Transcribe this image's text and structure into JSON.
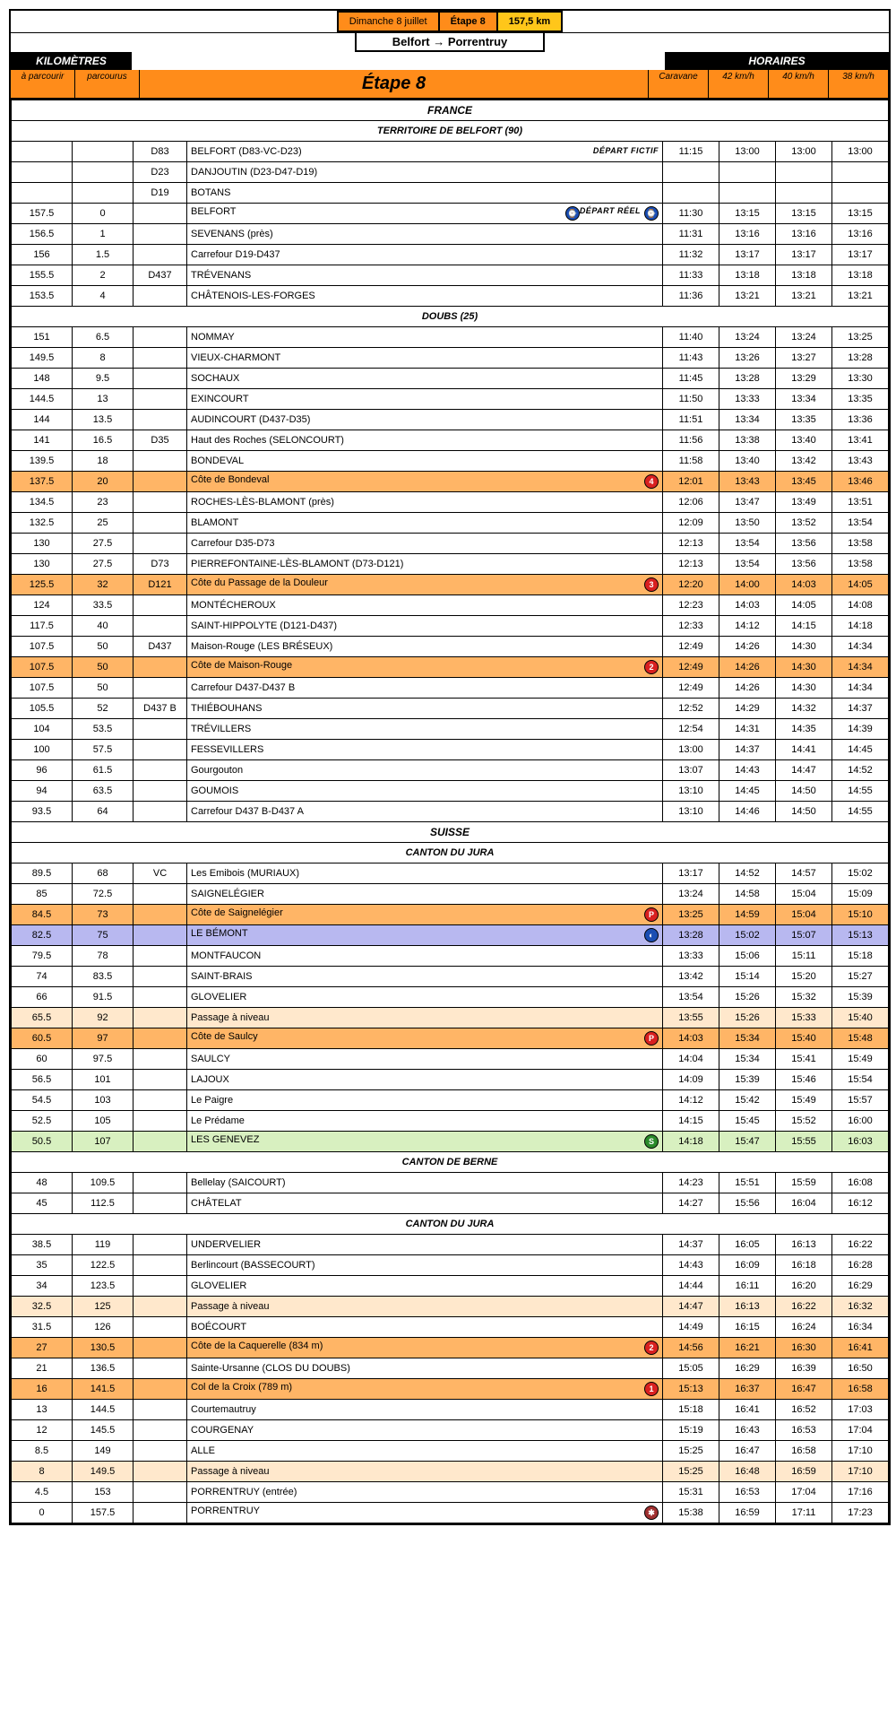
{
  "header": {
    "date": "Dimanche 8 juillet",
    "stage_label": "Étape 8",
    "distance": "157,5 km",
    "route": "Belfort → Porrentruy",
    "km_header": "KILOMÈTRES",
    "hor_header": "HORAIRES",
    "col_km1": "à parcourir",
    "col_km2": "parcourus",
    "col_stage": "Étape 8",
    "col_caravane": "Caravane",
    "col_s42": "42 km/h",
    "col_s40": "40 km/h",
    "col_s38": "38 km/h"
  },
  "labels": {
    "depart_fictif": "DÉPART FICTIF",
    "depart_reel": "DÉPART RÉEL"
  },
  "sections": [
    {
      "type": "country",
      "label": "FRANCE"
    },
    {
      "type": "region",
      "label": "TERRITOIRE DE BELFORT (90)"
    },
    {
      "km1": "",
      "km2": "",
      "road": "D83",
      "loc": "BELFORT (D83-VC-D23)",
      "tag": "depart_fictif",
      "car": "11:15",
      "s42": "13:00",
      "s40": "13:00",
      "s38": "13:00"
    },
    {
      "km1": "",
      "km2": "",
      "road": "D23",
      "loc": "DANJOUTIN (D23-D47-D19)",
      "car": "",
      "s42": "",
      "s40": "",
      "s38": ""
    },
    {
      "km1": "",
      "km2": "",
      "road": "D19",
      "loc": "BOTANS",
      "car": "",
      "s42": "",
      "s40": "",
      "s38": ""
    },
    {
      "km1": "157.5",
      "km2": "0",
      "road": "",
      "loc": "BELFORT",
      "tag": "depart_reel",
      "badge": {
        "cls": "b-blue",
        "txt": "⌚"
      },
      "car": "11:30",
      "s42": "13:15",
      "s40": "13:15",
      "s38": "13:15"
    },
    {
      "km1": "156.5",
      "km2": "1",
      "road": "",
      "loc": "SEVENANS (près)",
      "car": "11:31",
      "s42": "13:16",
      "s40": "13:16",
      "s38": "13:16"
    },
    {
      "km1": "156",
      "km2": "1.5",
      "road": "",
      "loc": "Carrefour D19-D437",
      "car": "11:32",
      "s42": "13:17",
      "s40": "13:17",
      "s38": "13:17"
    },
    {
      "km1": "155.5",
      "km2": "2",
      "road": "D437",
      "loc": "TRÉVENANS",
      "car": "11:33",
      "s42": "13:18",
      "s40": "13:18",
      "s38": "13:18"
    },
    {
      "km1": "153.5",
      "km2": "4",
      "road": "",
      "loc": "CHÂTENOIS-LES-FORGES",
      "car": "11:36",
      "s42": "13:21",
      "s40": "13:21",
      "s38": "13:21"
    },
    {
      "type": "region",
      "label": "DOUBS (25)"
    },
    {
      "km1": "151",
      "km2": "6.5",
      "road": "",
      "loc": "NOMMAY",
      "car": "11:40",
      "s42": "13:24",
      "s40": "13:24",
      "s38": "13:25"
    },
    {
      "km1": "149.5",
      "km2": "8",
      "road": "",
      "loc": "VIEUX-CHARMONT",
      "car": "11:43",
      "s42": "13:26",
      "s40": "13:27",
      "s38": "13:28"
    },
    {
      "km1": "148",
      "km2": "9.5",
      "road": "",
      "loc": "SOCHAUX",
      "car": "11:45",
      "s42": "13:28",
      "s40": "13:29",
      "s38": "13:30"
    },
    {
      "km1": "144.5",
      "km2": "13",
      "road": "",
      "loc": "EXINCOURT",
      "car": "11:50",
      "s42": "13:33",
      "s40": "13:34",
      "s38": "13:35"
    },
    {
      "km1": "144",
      "km2": "13.5",
      "road": "",
      "loc": "AUDINCOURT (D437-D35)",
      "car": "11:51",
      "s42": "13:34",
      "s40": "13:35",
      "s38": "13:36"
    },
    {
      "km1": "141",
      "km2": "16.5",
      "road": "D35",
      "loc": "Haut des Roches (SELONCOURT)",
      "car": "11:56",
      "s42": "13:38",
      "s40": "13:40",
      "s38": "13:41"
    },
    {
      "km1": "139.5",
      "km2": "18",
      "road": "",
      "loc": "BONDEVAL",
      "car": "11:58",
      "s42": "13:40",
      "s40": "13:42",
      "s38": "13:43"
    },
    {
      "hl": "orange",
      "km1": "137.5",
      "km2": "20",
      "road": "",
      "loc": "Côte de Bondeval",
      "badge": {
        "cls": "b-red",
        "txt": "4"
      },
      "car": "12:01",
      "s42": "13:43",
      "s40": "13:45",
      "s38": "13:46"
    },
    {
      "km1": "134.5",
      "km2": "23",
      "road": "",
      "loc": "ROCHES-LÈS-BLAMONT (près)",
      "car": "12:06",
      "s42": "13:47",
      "s40": "13:49",
      "s38": "13:51"
    },
    {
      "km1": "132.5",
      "km2": "25",
      "road": "",
      "loc": "BLAMONT",
      "car": "12:09",
      "s42": "13:50",
      "s40": "13:52",
      "s38": "13:54"
    },
    {
      "km1": "130",
      "km2": "27.5",
      "road": "",
      "loc": "Carrefour D35-D73",
      "car": "12:13",
      "s42": "13:54",
      "s40": "13:56",
      "s38": "13:58"
    },
    {
      "km1": "130",
      "km2": "27.5",
      "road": "D73",
      "loc": "PIERREFONTAINE-LÈS-BLAMONT (D73-D121)",
      "car": "12:13",
      "s42": "13:54",
      "s40": "13:56",
      "s38": "13:58"
    },
    {
      "hl": "orange",
      "km1": "125.5",
      "km2": "32",
      "road": "D121",
      "loc": "Côte du Passage de la Douleur",
      "badge": {
        "cls": "b-red",
        "txt": "3"
      },
      "car": "12:20",
      "s42": "14:00",
      "s40": "14:03",
      "s38": "14:05"
    },
    {
      "km1": "124",
      "km2": "33.5",
      "road": "",
      "loc": "MONTÉCHEROUX",
      "car": "12:23",
      "s42": "14:03",
      "s40": "14:05",
      "s38": "14:08"
    },
    {
      "km1": "117.5",
      "km2": "40",
      "road": "",
      "loc": "SAINT-HIPPOLYTE (D121-D437)",
      "car": "12:33",
      "s42": "14:12",
      "s40": "14:15",
      "s38": "14:18"
    },
    {
      "km1": "107.5",
      "km2": "50",
      "road": "D437",
      "loc": "Maison-Rouge (LES BRÉSEUX)",
      "car": "12:49",
      "s42": "14:26",
      "s40": "14:30",
      "s38": "14:34"
    },
    {
      "hl": "orange",
      "km1": "107.5",
      "km2": "50",
      "road": "",
      "loc": "Côte de Maison-Rouge",
      "badge": {
        "cls": "b-red",
        "txt": "2"
      },
      "car": "12:49",
      "s42": "14:26",
      "s40": "14:30",
      "s38": "14:34"
    },
    {
      "km1": "107.5",
      "km2": "50",
      "road": "",
      "loc": "Carrefour D437-D437 B",
      "car": "12:49",
      "s42": "14:26",
      "s40": "14:30",
      "s38": "14:34"
    },
    {
      "km1": "105.5",
      "km2": "52",
      "road": "D437 B",
      "loc": "THIÉBOUHANS",
      "car": "12:52",
      "s42": "14:29",
      "s40": "14:32",
      "s38": "14:37"
    },
    {
      "km1": "104",
      "km2": "53.5",
      "road": "",
      "loc": "TRÉVILLERS",
      "car": "12:54",
      "s42": "14:31",
      "s40": "14:35",
      "s38": "14:39"
    },
    {
      "km1": "100",
      "km2": "57.5",
      "road": "",
      "loc": "FESSEVILLERS",
      "car": "13:00",
      "s42": "14:37",
      "s40": "14:41",
      "s38": "14:45"
    },
    {
      "km1": "96",
      "km2": "61.5",
      "road": "",
      "loc": "Gourgouton",
      "car": "13:07",
      "s42": "14:43",
      "s40": "14:47",
      "s38": "14:52"
    },
    {
      "km1": "94",
      "km2": "63.5",
      "road": "",
      "loc": "GOUMOIS",
      "car": "13:10",
      "s42": "14:45",
      "s40": "14:50",
      "s38": "14:55"
    },
    {
      "km1": "93.5",
      "km2": "64",
      "road": "",
      "loc": "Carrefour D437 B-D437 A",
      "car": "13:10",
      "s42": "14:46",
      "s40": "14:50",
      "s38": "14:55"
    },
    {
      "type": "country",
      "label": "SUISSE"
    },
    {
      "type": "region",
      "label": "CANTON DU JURA"
    },
    {
      "km1": "89.5",
      "km2": "68",
      "road": "VC",
      "loc": "Les Emibois (MURIAUX)",
      "car": "13:17",
      "s42": "14:52",
      "s40": "14:57",
      "s38": "15:02"
    },
    {
      "km1": "85",
      "km2": "72.5",
      "road": "",
      "loc": "SAIGNELÉGIER",
      "car": "13:24",
      "s42": "14:58",
      "s40": "15:04",
      "s38": "15:09"
    },
    {
      "hl": "orange",
      "km1": "84.5",
      "km2": "73",
      "road": "",
      "loc": "Côte de Saignelégier",
      "badge": {
        "cls": "b-red",
        "txt": "P"
      },
      "car": "13:25",
      "s42": "14:59",
      "s40": "15:04",
      "s38": "15:10"
    },
    {
      "hl": "blue",
      "km1": "82.5",
      "km2": "75",
      "road": "",
      "loc": "LE BÉMONT",
      "badge": {
        "cls": "b-blue",
        "txt": "◐"
      },
      "car": "13:28",
      "s42": "15:02",
      "s40": "15:07",
      "s38": "15:13"
    },
    {
      "km1": "79.5",
      "km2": "78",
      "road": "",
      "loc": "MONTFAUCON",
      "car": "13:33",
      "s42": "15:06",
      "s40": "15:11",
      "s38": "15:18"
    },
    {
      "km1": "74",
      "km2": "83.5",
      "road": "",
      "loc": "SAINT-BRAIS",
      "car": "13:42",
      "s42": "15:14",
      "s40": "15:20",
      "s38": "15:27"
    },
    {
      "km1": "66",
      "km2": "91.5",
      "road": "",
      "loc": "GLOVELIER",
      "car": "13:54",
      "s42": "15:26",
      "s40": "15:32",
      "s38": "15:39"
    },
    {
      "hl": "cream",
      "km1": "65.5",
      "km2": "92",
      "road": "",
      "loc": "Passage à niveau",
      "car": "13:55",
      "s42": "15:26",
      "s40": "15:33",
      "s38": "15:40"
    },
    {
      "hl": "orange",
      "km1": "60.5",
      "km2": "97",
      "road": "",
      "loc": "Côte de Saulcy",
      "badge": {
        "cls": "b-red",
        "txt": "P"
      },
      "car": "14:03",
      "s42": "15:34",
      "s40": "15:40",
      "s38": "15:48"
    },
    {
      "km1": "60",
      "km2": "97.5",
      "road": "",
      "loc": "SAULCY",
      "car": "14:04",
      "s42": "15:34",
      "s40": "15:41",
      "s38": "15:49"
    },
    {
      "km1": "56.5",
      "km2": "101",
      "road": "",
      "loc": "LAJOUX",
      "car": "14:09",
      "s42": "15:39",
      "s40": "15:46",
      "s38": "15:54"
    },
    {
      "km1": "54.5",
      "km2": "103",
      "road": "",
      "loc": "Le Paigre",
      "car": "14:12",
      "s42": "15:42",
      "s40": "15:49",
      "s38": "15:57"
    },
    {
      "km1": "52.5",
      "km2": "105",
      "road": "",
      "loc": "Le Prédame",
      "car": "14:15",
      "s42": "15:45",
      "s40": "15:52",
      "s38": "16:00"
    },
    {
      "hl": "green",
      "km1": "50.5",
      "km2": "107",
      "road": "",
      "loc": "LES GENEVEZ",
      "badge": {
        "cls": "b-green",
        "txt": "S"
      },
      "car": "14:18",
      "s42": "15:47",
      "s40": "15:55",
      "s38": "16:03"
    },
    {
      "type": "region",
      "label": "CANTON DE BERNE"
    },
    {
      "km1": "48",
      "km2": "109.5",
      "road": "",
      "loc": "Bellelay (SAICOURT)",
      "car": "14:23",
      "s42": "15:51",
      "s40": "15:59",
      "s38": "16:08"
    },
    {
      "km1": "45",
      "km2": "112.5",
      "road": "",
      "loc": "CHÂTELAT",
      "car": "14:27",
      "s42": "15:56",
      "s40": "16:04",
      "s38": "16:12"
    },
    {
      "type": "region",
      "label": "CANTON DU JURA"
    },
    {
      "km1": "38.5",
      "km2": "119",
      "road": "",
      "loc": "UNDERVELIER",
      "car": "14:37",
      "s42": "16:05",
      "s40": "16:13",
      "s38": "16:22"
    },
    {
      "km1": "35",
      "km2": "122.5",
      "road": "",
      "loc": "Berlincourt (BASSECOURT)",
      "car": "14:43",
      "s42": "16:09",
      "s40": "16:18",
      "s38": "16:28"
    },
    {
      "km1": "34",
      "km2": "123.5",
      "road": "",
      "loc": "GLOVELIER",
      "car": "14:44",
      "s42": "16:11",
      "s40": "16:20",
      "s38": "16:29"
    },
    {
      "hl": "cream",
      "km1": "32.5",
      "km2": "125",
      "road": "",
      "loc": "Passage à niveau",
      "car": "14:47",
      "s42": "16:13",
      "s40": "16:22",
      "s38": "16:32"
    },
    {
      "km1": "31.5",
      "km2": "126",
      "road": "",
      "loc": "BOÉCOURT",
      "car": "14:49",
      "s42": "16:15",
      "s40": "16:24",
      "s38": "16:34"
    },
    {
      "hl": "orange",
      "km1": "27",
      "km2": "130.5",
      "road": "",
      "loc": "Côte de la Caquerelle (834 m)",
      "badge": {
        "cls": "b-red",
        "txt": "2"
      },
      "car": "14:56",
      "s42": "16:21",
      "s40": "16:30",
      "s38": "16:41"
    },
    {
      "km1": "21",
      "km2": "136.5",
      "road": "",
      "loc": "Sainte-Ursanne (CLOS DU DOUBS)",
      "car": "15:05",
      "s42": "16:29",
      "s40": "16:39",
      "s38": "16:50"
    },
    {
      "hl": "orange",
      "km1": "16",
      "km2": "141.5",
      "road": "",
      "loc": "Col de la Croix (789 m)",
      "badge": {
        "cls": "b-red",
        "txt": "1"
      },
      "car": "15:13",
      "s42": "16:37",
      "s40": "16:47",
      "s38": "16:58"
    },
    {
      "km1": "13",
      "km2": "144.5",
      "road": "",
      "loc": "Courtemautruy",
      "car": "15:18",
      "s42": "16:41",
      "s40": "16:52",
      "s38": "17:03"
    },
    {
      "km1": "12",
      "km2": "145.5",
      "road": "",
      "loc": "COURGENAY",
      "car": "15:19",
      "s42": "16:43",
      "s40": "16:53",
      "s38": "17:04"
    },
    {
      "km1": "8.5",
      "km2": "149",
      "road": "",
      "loc": "ALLE",
      "car": "15:25",
      "s42": "16:47",
      "s40": "16:58",
      "s38": "17:10"
    },
    {
      "hl": "cream",
      "km1": "8",
      "km2": "149.5",
      "road": "",
      "loc": "Passage à niveau",
      "car": "15:25",
      "s42": "16:48",
      "s40": "16:59",
      "s38": "17:10"
    },
    {
      "km1": "4.5",
      "km2": "153",
      "road": "",
      "loc": "PORRENTRUY (entrée)",
      "car": "15:31",
      "s42": "16:53",
      "s40": "17:04",
      "s38": "17:16"
    },
    {
      "km1": "0",
      "km2": "157.5",
      "road": "",
      "loc": "PORRENTRUY",
      "badge": {
        "cls": "b-dark",
        "txt": "✱"
      },
      "car": "15:38",
      "s42": "16:59",
      "s40": "17:11",
      "s38": "17:23"
    }
  ]
}
